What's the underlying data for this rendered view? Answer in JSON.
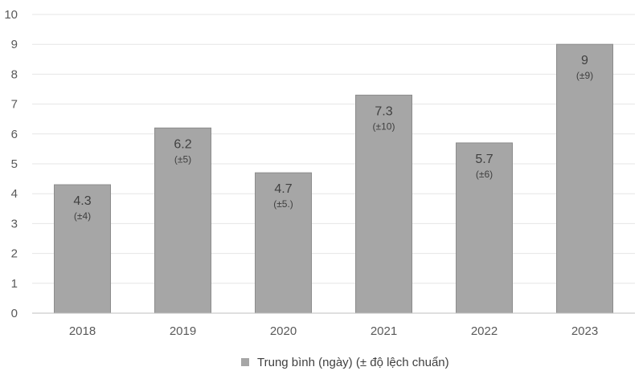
{
  "chart_data": {
    "type": "bar",
    "categories": [
      "2018",
      "2019",
      "2020",
      "2021",
      "2022",
      "2023"
    ],
    "series": [
      {
        "name": "Trung bình (ngày) (± độ lệch chuẩn)",
        "values": [
          4.3,
          6.2,
          4.7,
          7.3,
          5.7,
          9
        ],
        "value_labels": [
          "4.3",
          "6.2",
          "4.7",
          "7.3",
          "5.7",
          "9"
        ],
        "sd_labels": [
          "(±4)",
          "(±5)",
          "(±5.)",
          "(±10)",
          "(±6)",
          "(±9)"
        ]
      }
    ],
    "ylim": [
      0,
      10
    ],
    "yticks": [
      "0",
      "1",
      "2",
      "3",
      "4",
      "5",
      "6",
      "7",
      "8",
      "9",
      "10"
    ],
    "grid": true,
    "legend_position": "bottom",
    "colors": {
      "bar": "#a6a6a6",
      "bar_edge": "#8c8c8c",
      "grid": "#e6e6e6",
      "axis": "#bfbfbf"
    }
  }
}
